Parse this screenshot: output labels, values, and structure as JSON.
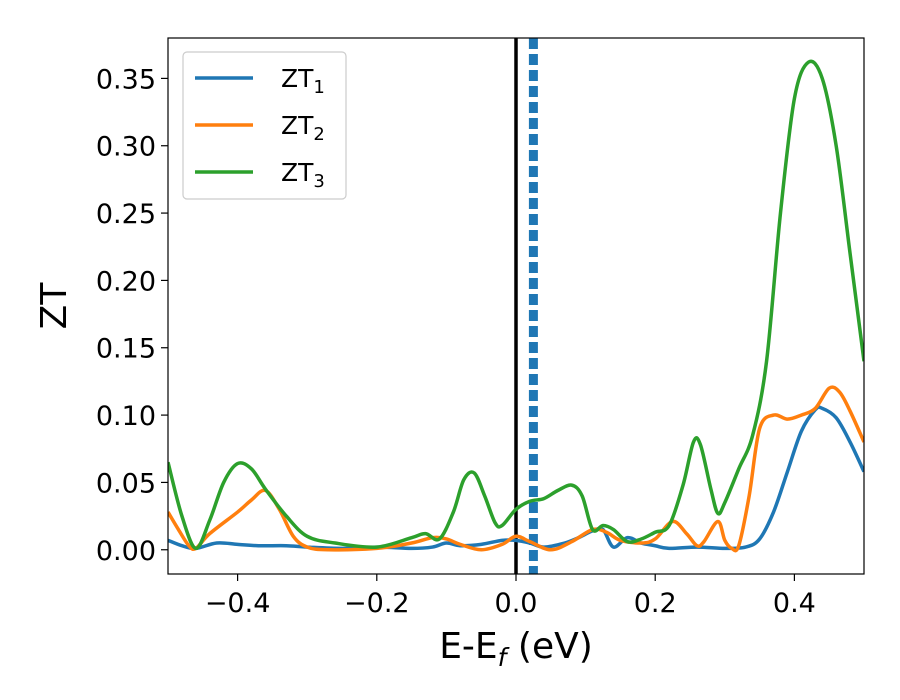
{
  "chart_data": {
    "type": "line",
    "xlabel": "E-E",
    "xlabel_sub": "f",
    "xlabel_unit": " (eV)",
    "ylabel": "ZT",
    "xlim": [
      -0.5,
      0.5
    ],
    "ylim": [
      -0.018,
      0.38
    ],
    "x_ticks": [
      -0.4,
      -0.2,
      0.0,
      0.2,
      0.4
    ],
    "x_tick_labels": [
      "−0.4",
      "−0.2",
      "0.0",
      "0.2",
      "0.4"
    ],
    "y_ticks": [
      0.0,
      0.05,
      0.1,
      0.15,
      0.2,
      0.25,
      0.3,
      0.35
    ],
    "y_tick_labels": [
      "0.00",
      "0.05",
      "0.10",
      "0.15",
      "0.20",
      "0.25",
      "0.30",
      "0.35"
    ],
    "grid": false,
    "legend_position": "top-left",
    "vlines": [
      {
        "x": 0.0,
        "color": "#000000",
        "style": "solid"
      },
      {
        "x": 0.025,
        "color": "#1f77b4",
        "style": "dashed"
      }
    ],
    "series": [
      {
        "name": "ZT",
        "name_sub": "1",
        "color": "#1f77b4",
        "points": [
          [
            -0.5,
            0.007
          ],
          [
            -0.48,
            0.003
          ],
          [
            -0.46,
            0.001
          ],
          [
            -0.43,
            0.005
          ],
          [
            -0.4,
            0.004
          ],
          [
            -0.37,
            0.003
          ],
          [
            -0.33,
            0.003
          ],
          [
            -0.3,
            0.002
          ],
          [
            -0.25,
            0.001
          ],
          [
            -0.2,
            0.002
          ],
          [
            -0.15,
            0.001
          ],
          [
            -0.12,
            0.002
          ],
          [
            -0.1,
            0.005
          ],
          [
            -0.08,
            0.003
          ],
          [
            -0.05,
            0.004
          ],
          [
            -0.02,
            0.007
          ],
          [
            0.0,
            0.007
          ],
          [
            0.02,
            0.005
          ],
          [
            0.04,
            0.002
          ],
          [
            0.07,
            0.005
          ],
          [
            0.09,
            0.009
          ],
          [
            0.11,
            0.014
          ],
          [
            0.125,
            0.015
          ],
          [
            0.14,
            0.002
          ],
          [
            0.16,
            0.009
          ],
          [
            0.18,
            0.005
          ],
          [
            0.2,
            0.003
          ],
          [
            0.22,
            0.001
          ],
          [
            0.26,
            0.002
          ],
          [
            0.3,
            0.001
          ],
          [
            0.33,
            0.002
          ],
          [
            0.35,
            0.008
          ],
          [
            0.37,
            0.028
          ],
          [
            0.39,
            0.058
          ],
          [
            0.41,
            0.088
          ],
          [
            0.43,
            0.104
          ],
          [
            0.44,
            0.105
          ],
          [
            0.46,
            0.098
          ],
          [
            0.48,
            0.08
          ],
          [
            0.5,
            0.058
          ]
        ]
      },
      {
        "name": "ZT",
        "name_sub": "2",
        "color": "#ff7f0e",
        "points": [
          [
            -0.5,
            0.028
          ],
          [
            -0.485,
            0.015
          ],
          [
            -0.47,
            0.003
          ],
          [
            -0.46,
            0.001
          ],
          [
            -0.44,
            0.012
          ],
          [
            -0.4,
            0.028
          ],
          [
            -0.38,
            0.037
          ],
          [
            -0.36,
            0.044
          ],
          [
            -0.34,
            0.03
          ],
          [
            -0.32,
            0.01
          ],
          [
            -0.3,
            0.002
          ],
          [
            -0.27,
            0.0
          ],
          [
            -0.2,
            0.001
          ],
          [
            -0.15,
            0.005
          ],
          [
            -0.12,
            0.009
          ],
          [
            -0.1,
            0.008
          ],
          [
            -0.08,
            0.004
          ],
          [
            -0.05,
            0.0
          ],
          [
            -0.02,
            0.004
          ],
          [
            0.0,
            0.01
          ],
          [
            0.02,
            0.006
          ],
          [
            0.05,
            0.0
          ],
          [
            0.08,
            0.006
          ],
          [
            0.11,
            0.015
          ],
          [
            0.13,
            0.013
          ],
          [
            0.15,
            0.007
          ],
          [
            0.18,
            0.005
          ],
          [
            0.2,
            0.008
          ],
          [
            0.225,
            0.021
          ],
          [
            0.245,
            0.012
          ],
          [
            0.26,
            0.003
          ],
          [
            0.27,
            0.006
          ],
          [
            0.29,
            0.021
          ],
          [
            0.3,
            0.007
          ],
          [
            0.31,
            0.001
          ],
          [
            0.32,
            0.003
          ],
          [
            0.335,
            0.04
          ],
          [
            0.35,
            0.09
          ],
          [
            0.37,
            0.1
          ],
          [
            0.39,
            0.097
          ],
          [
            0.41,
            0.1
          ],
          [
            0.43,
            0.105
          ],
          [
            0.45,
            0.12
          ],
          [
            0.465,
            0.117
          ],
          [
            0.48,
            0.103
          ],
          [
            0.5,
            0.08
          ]
        ]
      },
      {
        "name": "ZT",
        "name_sub": "3",
        "color": "#2ca02c",
        "points": [
          [
            -0.5,
            0.065
          ],
          [
            -0.48,
            0.025
          ],
          [
            -0.46,
            0.001
          ],
          [
            -0.44,
            0.022
          ],
          [
            -0.42,
            0.05
          ],
          [
            -0.4,
            0.064
          ],
          [
            -0.38,
            0.06
          ],
          [
            -0.36,
            0.045
          ],
          [
            -0.33,
            0.025
          ],
          [
            -0.3,
            0.01
          ],
          [
            -0.26,
            0.005
          ],
          [
            -0.2,
            0.002
          ],
          [
            -0.15,
            0.009
          ],
          [
            -0.13,
            0.012
          ],
          [
            -0.11,
            0.008
          ],
          [
            -0.09,
            0.028
          ],
          [
            -0.075,
            0.052
          ],
          [
            -0.06,
            0.057
          ],
          [
            -0.045,
            0.04
          ],
          [
            -0.03,
            0.02
          ],
          [
            -0.02,
            0.018
          ],
          [
            0.0,
            0.03
          ],
          [
            0.02,
            0.036
          ],
          [
            0.04,
            0.038
          ],
          [
            0.06,
            0.044
          ],
          [
            0.08,
            0.048
          ],
          [
            0.095,
            0.04
          ],
          [
            0.11,
            0.015
          ],
          [
            0.125,
            0.018
          ],
          [
            0.14,
            0.015
          ],
          [
            0.16,
            0.006
          ],
          [
            0.18,
            0.008
          ],
          [
            0.2,
            0.013
          ],
          [
            0.22,
            0.018
          ],
          [
            0.24,
            0.048
          ],
          [
            0.255,
            0.08
          ],
          [
            0.265,
            0.078
          ],
          [
            0.28,
            0.045
          ],
          [
            0.29,
            0.027
          ],
          [
            0.3,
            0.035
          ],
          [
            0.32,
            0.06
          ],
          [
            0.34,
            0.085
          ],
          [
            0.36,
            0.14
          ],
          [
            0.38,
            0.25
          ],
          [
            0.4,
            0.335
          ],
          [
            0.42,
            0.362
          ],
          [
            0.44,
            0.35
          ],
          [
            0.46,
            0.3
          ],
          [
            0.48,
            0.22
          ],
          [
            0.5,
            0.14
          ]
        ]
      }
    ]
  }
}
